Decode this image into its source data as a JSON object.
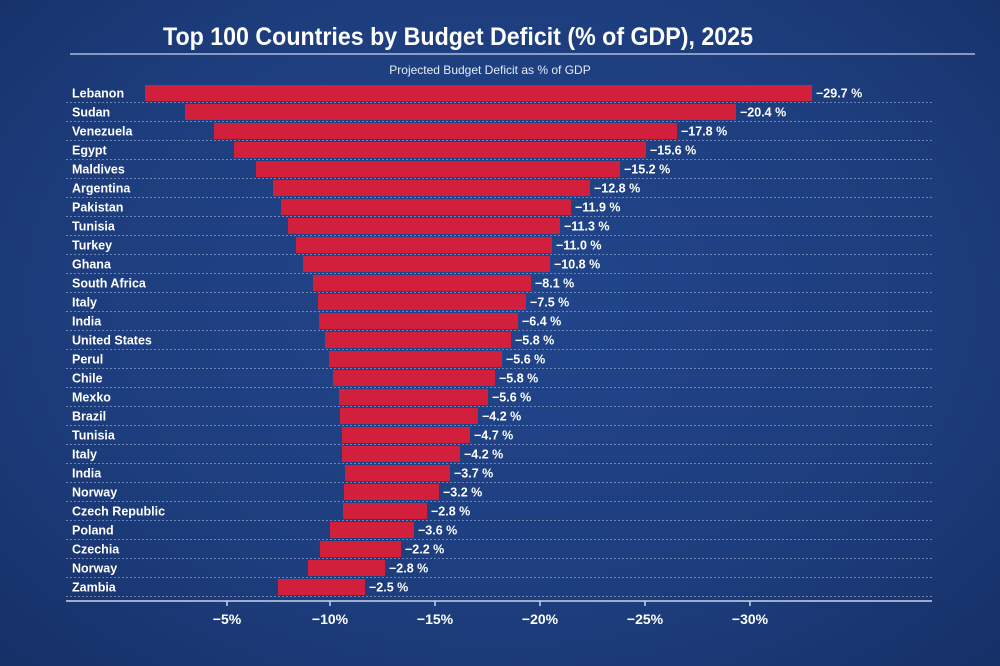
{
  "chart_data": {
    "type": "bar",
    "orientation": "horizontal",
    "title": "Top 100 Countries by Budget Deficit (% of GDP), 2025",
    "subtitle": "Projected Budget Deficit as % of GDP",
    "categories": [
      "Lebanon",
      "Sudan",
      "Venezuela",
      "Egypt",
      "Maldives",
      "Argentina",
      "Pakistan",
      "Tunisia",
      "Turkey",
      "Ghana",
      "South Africa",
      "Italy",
      "India",
      "United States",
      "Perul",
      "Chile",
      "Mexko",
      "Brazil",
      "Tunisia",
      "Italy",
      "India",
      "Norway",
      "Czech Republic",
      "Poland",
      "Czechia",
      "Norway",
      "Zambia"
    ],
    "values": [
      -29.7,
      -20.4,
      -17.8,
      -15.6,
      -15.2,
      -12.8,
      -11.9,
      -11.3,
      -11.0,
      -10.8,
      -8.1,
      -7.5,
      -6.4,
      -5.8,
      -5.6,
      -5.8,
      -5.6,
      -4.2,
      -4.7,
      -4.2,
      -3.7,
      -3.2,
      -2.8,
      -3.6,
      -2.2,
      -2.8,
      -2.5
    ],
    "value_labels": [
      "−29.7 %",
      "−20.4 %",
      "−17.8 %",
      "−15.6 %",
      "−15.2 %",
      "−12.8 %",
      "−11.9 %",
      "−11.3 %",
      "−11.0 %",
      "−10.8 %",
      "−8.1 %",
      "−7.5 %",
      "−6.4 %",
      "−5.8 %",
      "−5.6 %",
      "−5.8 %",
      "−5.6 %",
      "−4.2 %",
      "−4.7 %",
      "−4.2 %",
      "−3.7 %",
      "−3.2 %",
      "−2.8 %",
      "−3.6 %",
      "−2.2 %",
      "−2.8 %",
      "−2.5 %"
    ],
    "x_ticks": [
      "−5%",
      "−10%",
      "−15%",
      "−20%",
      "−25%",
      "−30%"
    ],
    "xlabel": "",
    "ylabel": "",
    "grid": "dotted horizontal row separators",
    "legend": "none",
    "colors": {
      "bar": "#d21f3c",
      "background": "#1f3f80",
      "text": "#ffffff"
    }
  }
}
